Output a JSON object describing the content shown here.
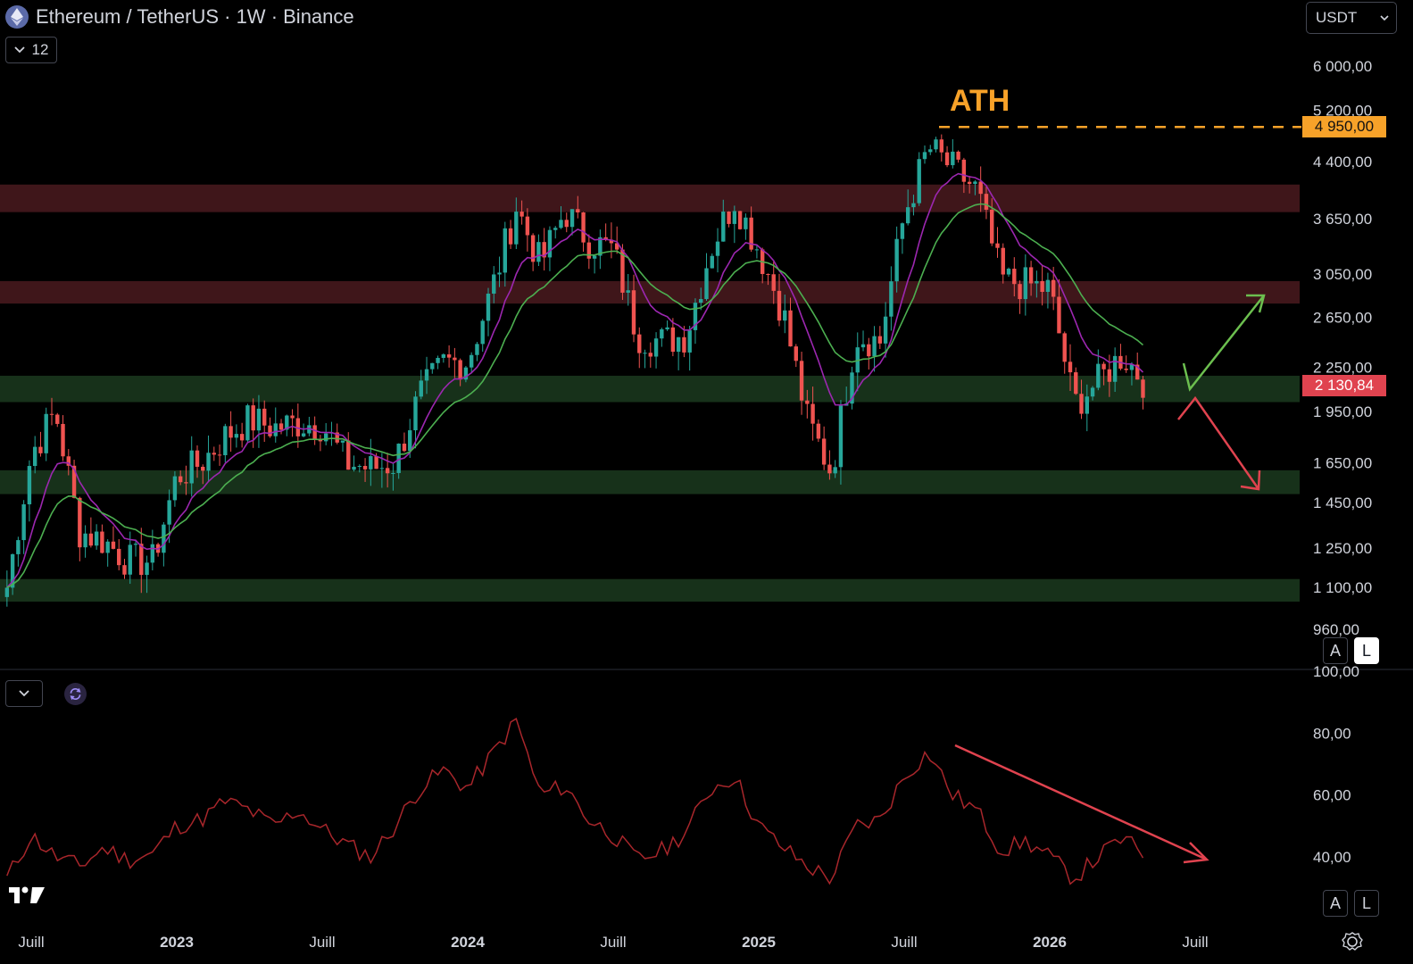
{
  "header": {
    "symbol_title": "Ethereum / TetherUS · 1W · Binance",
    "indicators_count": "12",
    "currency": "USDT"
  },
  "colors": {
    "background": "#000000",
    "bull": "#26a69a",
    "bear": "#ef5350",
    "ema_fast": "#9c27b0",
    "ema_slow": "#4caf50",
    "resistance_zone": "#4a1a1e",
    "support_zone": "#1b3a1f",
    "ath": "#f7a229",
    "last_price": "#e0434f",
    "rsi_line": "#a8262b",
    "arrow_up": "#6cbf4f",
    "arrow_down": "#e0434f"
  },
  "price_axis": {
    "ticks": [
      "6 000,00",
      "5 200,00",
      "4 400,00",
      "3 650,00",
      "3 050,00",
      "2 650,00",
      "2 250,00",
      "1 950,00",
      "1 650,00",
      "1 450,00",
      "1 250,00",
      "1 100,00",
      "960,00"
    ],
    "scale": "log"
  },
  "labels": {
    "ath_text": "ATH",
    "ath_price": "4 950,00",
    "last_price": "2 130,84",
    "scale_auto": "A",
    "scale_log": "L"
  },
  "rsi_axis": {
    "ticks": [
      "100,00",
      "80,00",
      "60,00",
      "40,00"
    ]
  },
  "time_axis": {
    "labels": [
      "Juill",
      "2023",
      "Juill",
      "2024",
      "Juill",
      "2025",
      "Juill",
      "2026",
      "Juill"
    ]
  },
  "zones": [
    {
      "type": "resistance",
      "low": 3730,
      "high": 4080
    },
    {
      "type": "resistance",
      "low": 2770,
      "high": 2980
    },
    {
      "type": "support",
      "low": 2010,
      "high": 2190
    },
    {
      "type": "support",
      "low": 1490,
      "high": 1610
    },
    {
      "type": "support",
      "low": 1050,
      "high": 1130
    }
  ],
  "chart_data": {
    "type": "candlestick",
    "timeframe": "1W",
    "y_scale": "log",
    "ath": 4950,
    "last_price": 2130.84,
    "close_path": [
      [
        "2022-06",
        1100
      ],
      [
        "2022-07",
        1700
      ],
      [
        "2022-08",
        1950
      ],
      [
        "2022-09",
        1320
      ],
      [
        "2022-10",
        1280
      ],
      [
        "2022-11",
        1200
      ],
      [
        "2022-12",
        1200
      ],
      [
        "2023-01",
        1580
      ],
      [
        "2023-02",
        1650
      ],
      [
        "2023-03",
        1800
      ],
      [
        "2023-04",
        1900
      ],
      [
        "2023-05",
        1850
      ],
      [
        "2023-06",
        1880
      ],
      [
        "2023-07",
        1870
      ],
      [
        "2023-08",
        1650
      ],
      [
        "2023-09",
        1620
      ],
      [
        "2023-10",
        1650
      ],
      [
        "2023-11",
        2050
      ],
      [
        "2023-12",
        2280
      ],
      [
        "2024-01",
        2300
      ],
      [
        "2024-02",
        2900
      ],
      [
        "2024-03",
        3800
      ],
      [
        "2024-04",
        3150
      ],
      [
        "2024-05",
        3750
      ],
      [
        "2024-06",
        3400
      ],
      [
        "2024-07",
        3300
      ],
      [
        "2024-08",
        2500
      ],
      [
        "2024-09",
        2450
      ],
      [
        "2024-10",
        2500
      ],
      [
        "2024-11",
        3300
      ],
      [
        "2024-12",
        3900
      ],
      [
        "2025-01",
        3300
      ],
      [
        "2025-02",
        2700
      ],
      [
        "2025-03",
        1900
      ],
      [
        "2025-04",
        1600
      ],
      [
        "2025-05",
        2500
      ],
      [
        "2025-06",
        2450
      ],
      [
        "2025-07",
        3700
      ],
      [
        "2025-08",
        4600
      ],
      [
        "2025-09",
        4300
      ],
      [
        "2025-10",
        4000
      ],
      [
        "2025-11",
        3000
      ],
      [
        "2025-12",
        2950
      ],
      [
        "2026-01",
        2900
      ],
      [
        "2026-02",
        2000
      ],
      [
        "2026-03",
        2150
      ],
      [
        "2026-04",
        2350
      ],
      [
        "2026-05",
        2130
      ]
    ],
    "rsi": {
      "range": [
        0,
        100
      ],
      "path": [
        [
          "2022-06",
          33
        ],
        [
          "2022-07",
          47
        ],
        [
          "2022-08",
          40
        ],
        [
          "2022-09",
          37
        ],
        [
          "2022-10",
          43
        ],
        [
          "2022-11",
          39
        ],
        [
          "2022-12",
          41
        ],
        [
          "2023-01",
          50
        ],
        [
          "2023-02",
          52
        ],
        [
          "2023-03",
          58
        ],
        [
          "2023-04",
          55
        ],
        [
          "2023-05",
          50
        ],
        [
          "2023-06",
          55
        ],
        [
          "2023-07",
          49
        ],
        [
          "2023-08",
          44
        ],
        [
          "2023-09",
          40
        ],
        [
          "2023-10",
          50
        ],
        [
          "2023-11",
          62
        ],
        [
          "2023-12",
          68
        ],
        [
          "2024-01",
          62
        ],
        [
          "2024-02",
          73
        ],
        [
          "2024-03",
          84
        ],
        [
          "2024-04",
          60
        ],
        [
          "2024-05",
          63
        ],
        [
          "2024-06",
          52
        ],
        [
          "2024-07",
          47
        ],
        [
          "2024-08",
          39
        ],
        [
          "2024-09",
          42
        ],
        [
          "2024-10",
          48
        ],
        [
          "2024-11",
          62
        ],
        [
          "2024-12",
          66
        ],
        [
          "2025-01",
          50
        ],
        [
          "2025-02",
          43
        ],
        [
          "2025-03",
          37
        ],
        [
          "2025-04",
          33
        ],
        [
          "2025-05",
          50
        ],
        [
          "2025-06",
          52
        ],
        [
          "2025-07",
          66
        ],
        [
          "2025-08",
          74
        ],
        [
          "2025-09",
          60
        ],
        [
          "2025-10",
          55
        ],
        [
          "2025-11",
          42
        ],
        [
          "2025-12",
          45
        ],
        [
          "2026-01",
          40
        ],
        [
          "2026-02",
          33
        ],
        [
          "2026-03",
          40
        ],
        [
          "2026-04",
          46
        ],
        [
          "2026-05",
          40
        ]
      ]
    }
  }
}
